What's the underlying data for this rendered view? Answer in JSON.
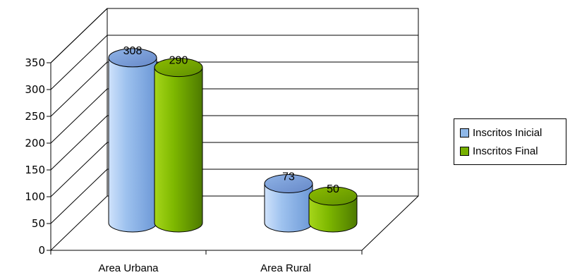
{
  "chart_data": {
    "type": "bar",
    "style": "3d-cylinder",
    "categories": [
      "Area Urbana",
      "Area Rural"
    ],
    "series": [
      {
        "name": "Inscritos Inicial",
        "values": [
          308,
          73
        ],
        "color": "#8FB8E8"
      },
      {
        "name": "Inscritos Final",
        "values": [
          290,
          50
        ],
        "color": "#77B000"
      }
    ],
    "yticks": [
      "0",
      "50",
      "100",
      "150",
      "200",
      "250",
      "300",
      "350"
    ],
    "ylim": [
      0,
      350
    ],
    "grid": true,
    "legend_position": "right"
  }
}
